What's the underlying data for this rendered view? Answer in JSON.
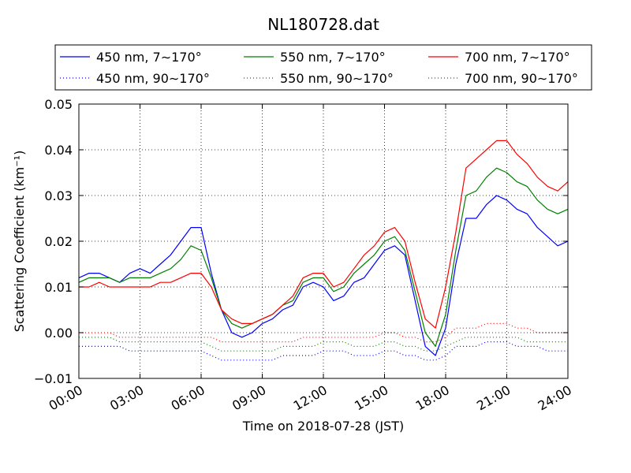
{
  "chart_data": {
    "type": "line",
    "title": "NL180728.dat",
    "xlabel": "Time on 2018-07-28 (JST)",
    "ylabel": "Scattering Coefficient (km⁻¹)",
    "x_unit": "hours",
    "xlim": [
      0,
      24
    ],
    "ylim": [
      -0.01,
      0.05
    ],
    "x_ticks": [
      0,
      3,
      6,
      9,
      12,
      15,
      18,
      21,
      24
    ],
    "x_tick_labels": [
      "00:00",
      "03:00",
      "06:00",
      "09:00",
      "12:00",
      "15:00",
      "18:00",
      "21:00",
      "24:00"
    ],
    "y_ticks": [
      -0.01,
      0.0,
      0.01,
      0.02,
      0.03,
      0.04,
      0.05
    ],
    "y_tick_labels": [
      "−0.01",
      "0.00",
      "0.01",
      "0.02",
      "0.03",
      "0.04",
      "0.05"
    ],
    "grid": true,
    "legend_position": "top, above plot, 3 columns",
    "x": [
      0,
      0.5,
      1,
      1.5,
      2,
      2.5,
      3,
      3.5,
      4,
      4.5,
      5,
      5.5,
      6,
      6.5,
      7,
      7.5,
      8,
      8.5,
      9,
      9.5,
      10,
      10.5,
      11,
      11.5,
      12,
      12.5,
      13,
      13.5,
      14,
      14.5,
      15,
      15.5,
      16,
      16.5,
      17,
      17.5,
      18,
      18.5,
      19,
      19.5,
      20,
      20.5,
      21,
      21.5,
      22,
      22.5,
      23,
      23.5,
      24
    ],
    "series": [
      {
        "name": "450 nm, 7∼170°",
        "color": "#0000ff",
        "style": "solid",
        "values": [
          0.012,
          0.013,
          0.013,
          0.012,
          0.011,
          0.013,
          0.014,
          0.013,
          0.015,
          0.017,
          0.02,
          0.023,
          0.023,
          0.013,
          0.005,
          0.0,
          -0.001,
          0.0,
          0.002,
          0.003,
          0.005,
          0.006,
          0.01,
          0.011,
          0.01,
          0.007,
          0.008,
          0.011,
          0.012,
          0.015,
          0.018,
          0.019,
          0.017,
          0.007,
          -0.003,
          -0.005,
          0.001,
          0.015,
          0.025,
          0.025,
          0.028,
          0.03,
          0.029,
          0.027,
          0.026,
          0.023,
          0.021,
          0.019,
          0.02
        ]
      },
      {
        "name": "450 nm, 90∼170°",
        "color": "#0000ff",
        "style": "dotted",
        "values": [
          -0.003,
          -0.003,
          -0.003,
          -0.003,
          -0.003,
          -0.004,
          -0.004,
          -0.004,
          -0.004,
          -0.004,
          -0.004,
          -0.004,
          -0.004,
          -0.005,
          -0.006,
          -0.006,
          -0.006,
          -0.006,
          -0.006,
          -0.006,
          -0.005,
          -0.005,
          -0.005,
          -0.005,
          -0.004,
          -0.004,
          -0.004,
          -0.005,
          -0.005,
          -0.005,
          -0.004,
          -0.004,
          -0.005,
          -0.005,
          -0.006,
          -0.006,
          -0.005,
          -0.003,
          -0.003,
          -0.003,
          -0.002,
          -0.002,
          -0.002,
          -0.003,
          -0.003,
          -0.003,
          -0.004,
          -0.004,
          -0.004
        ]
      },
      {
        "name": "550 nm, 7∼170°",
        "color": "#008000",
        "style": "solid",
        "values": [
          0.011,
          0.012,
          0.012,
          0.012,
          0.011,
          0.012,
          0.012,
          0.012,
          0.013,
          0.014,
          0.016,
          0.019,
          0.018,
          0.012,
          0.005,
          0.002,
          0.001,
          0.002,
          0.003,
          0.004,
          0.006,
          0.007,
          0.011,
          0.012,
          0.012,
          0.009,
          0.01,
          0.013,
          0.015,
          0.017,
          0.02,
          0.021,
          0.018,
          0.009,
          0.0,
          -0.003,
          0.004,
          0.018,
          0.03,
          0.031,
          0.034,
          0.036,
          0.035,
          0.033,
          0.032,
          0.029,
          0.027,
          0.026,
          0.027
        ]
      },
      {
        "name": "550 nm, 90∼170°",
        "color": "#008000",
        "style": "dotted",
        "values": [
          -0.001,
          -0.001,
          -0.001,
          -0.001,
          -0.002,
          -0.002,
          -0.002,
          -0.002,
          -0.002,
          -0.002,
          -0.002,
          -0.002,
          -0.002,
          -0.003,
          -0.004,
          -0.004,
          -0.004,
          -0.004,
          -0.004,
          -0.004,
          -0.003,
          -0.003,
          -0.003,
          -0.003,
          -0.002,
          -0.002,
          -0.002,
          -0.003,
          -0.003,
          -0.003,
          -0.002,
          -0.002,
          -0.003,
          -0.003,
          -0.004,
          -0.004,
          -0.003,
          -0.002,
          -0.001,
          -0.001,
          -0.001,
          -0.001,
          -0.001,
          -0.001,
          -0.002,
          -0.002,
          -0.002,
          -0.002,
          -0.002
        ]
      },
      {
        "name": "700 nm, 7∼170°",
        "color": "#ff0000",
        "style": "solid",
        "values": [
          0.01,
          0.01,
          0.011,
          0.01,
          0.01,
          0.01,
          0.01,
          0.01,
          0.011,
          0.011,
          0.012,
          0.013,
          0.013,
          0.01,
          0.005,
          0.003,
          0.002,
          0.002,
          0.003,
          0.004,
          0.006,
          0.008,
          0.012,
          0.013,
          0.013,
          0.01,
          0.011,
          0.014,
          0.017,
          0.019,
          0.022,
          0.023,
          0.02,
          0.011,
          0.003,
          0.001,
          0.01,
          0.022,
          0.036,
          0.038,
          0.04,
          0.042,
          0.042,
          0.039,
          0.037,
          0.034,
          0.032,
          0.031,
          0.033
        ]
      },
      {
        "name": "700 nm, 90∼170°",
        "color": "#ff0000",
        "style": "dotted",
        "values": [
          0.0,
          0.0,
          0.0,
          0.0,
          -0.001,
          -0.001,
          -0.001,
          -0.001,
          -0.001,
          -0.001,
          -0.001,
          -0.001,
          -0.001,
          -0.001,
          -0.002,
          -0.002,
          -0.002,
          -0.002,
          -0.002,
          -0.002,
          -0.002,
          -0.002,
          -0.001,
          -0.001,
          -0.001,
          -0.001,
          -0.001,
          -0.001,
          -0.001,
          -0.001,
          0.0,
          0.0,
          -0.001,
          -0.001,
          -0.002,
          -0.002,
          -0.001,
          0.001,
          0.001,
          0.001,
          0.002,
          0.002,
          0.002,
          0.001,
          0.001,
          0.0,
          0.0,
          0.0,
          0.0
        ]
      }
    ]
  }
}
